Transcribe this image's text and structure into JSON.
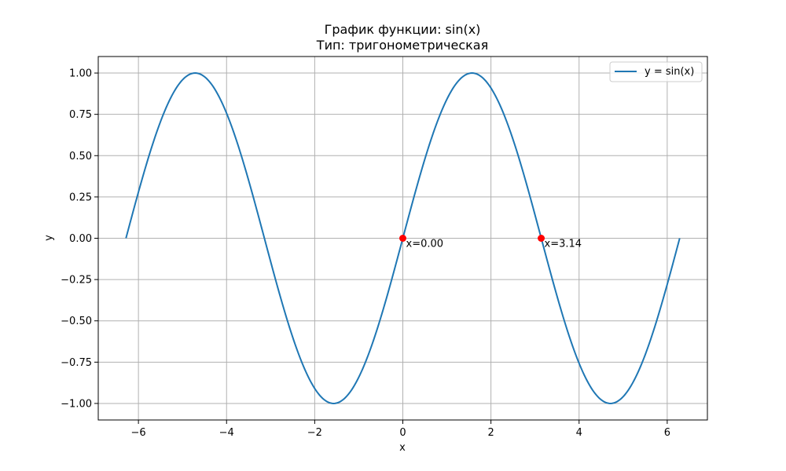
{
  "chart_data": {
    "type": "line",
    "title": "График функции: sin(x)",
    "subtitle": "Тип: тригонометрическая",
    "xlabel": "x",
    "ylabel": "y",
    "xlim": [
      -6.912,
      6.912
    ],
    "ylim": [
      -1.1,
      1.1
    ],
    "grid": true,
    "legend_position": "top-right",
    "x_ticks": [
      -6,
      -4,
      -2,
      0,
      2,
      4,
      6
    ],
    "x_tick_labels": [
      "−6",
      "−4",
      "−2",
      "0",
      "2",
      "4",
      "6"
    ],
    "y_ticks": [
      -1.0,
      -0.75,
      -0.5,
      -0.25,
      0.0,
      0.25,
      0.5,
      0.75,
      1.0
    ],
    "y_tick_labels": [
      "−1.00",
      "−0.75",
      "−0.50",
      "−0.25",
      "0.00",
      "0.25",
      "0.50",
      "0.75",
      "1.00"
    ],
    "series": [
      {
        "name": "y = sin(x)",
        "color": "#1f77b4",
        "x": [
          -6.283,
          -5.498,
          -4.712,
          -3.927,
          -3.142,
          -2.356,
          -1.571,
          -0.785,
          0.0,
          0.785,
          1.571,
          2.356,
          3.142,
          3.927,
          4.712,
          5.498,
          6.283
        ],
        "y": [
          0.0,
          0.707,
          1.0,
          0.707,
          0.0,
          -0.707,
          -1.0,
          -0.707,
          0.0,
          0.707,
          1.0,
          0.707,
          0.0,
          -0.707,
          -1.0,
          -0.707,
          0.0
        ]
      }
    ],
    "points": [
      {
        "x": 0.0,
        "y": 0.0,
        "label": "x=0.00",
        "color": "#ff0000"
      },
      {
        "x": 3.14,
        "y": 0.0,
        "label": "x=3.14",
        "color": "#ff0000"
      }
    ]
  }
}
